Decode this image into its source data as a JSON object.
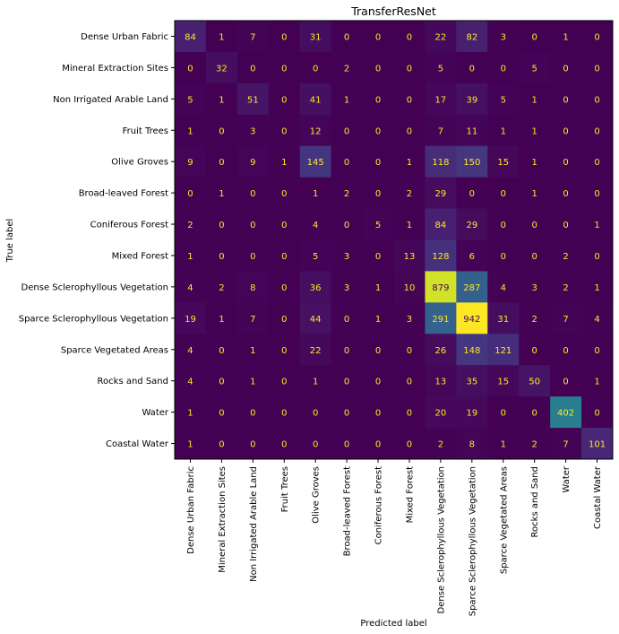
{
  "chart_data": {
    "type": "heatmap",
    "title": "TransferResNet",
    "xlabel": "Predicted label",
    "ylabel": "True label",
    "labels": [
      "Dense Urban Fabric",
      "Mineral Extraction Sites",
      "Non Irrigated Arable Land",
      "Fruit Trees",
      "Olive Groves",
      "Broad-leaved Forest",
      "Coniferous Forest",
      "Mixed Forest",
      "Dense Sclerophyllous Vegetation",
      "Sparce Sclerophyllous Vegetation",
      "Sparce Vegetated Areas",
      "Rocks and Sand",
      "Water",
      "Coastal Water"
    ],
    "matrix": [
      [
        84,
        1,
        7,
        0,
        31,
        0,
        0,
        0,
        22,
        82,
        3,
        0,
        1,
        0
      ],
      [
        0,
        32,
        0,
        0,
        0,
        2,
        0,
        0,
        5,
        0,
        0,
        5,
        0,
        0
      ],
      [
        5,
        1,
        51,
        0,
        41,
        1,
        0,
        0,
        17,
        39,
        5,
        1,
        0,
        0
      ],
      [
        1,
        0,
        3,
        0,
        12,
        0,
        0,
        0,
        7,
        11,
        1,
        1,
        0,
        0
      ],
      [
        9,
        0,
        9,
        1,
        145,
        0,
        0,
        1,
        118,
        150,
        15,
        1,
        0,
        0
      ],
      [
        0,
        1,
        0,
        0,
        1,
        2,
        0,
        2,
        29,
        0,
        0,
        1,
        0,
        0
      ],
      [
        2,
        0,
        0,
        0,
        4,
        0,
        5,
        1,
        84,
        29,
        0,
        0,
        0,
        1
      ],
      [
        1,
        0,
        0,
        0,
        5,
        3,
        0,
        13,
        128,
        6,
        0,
        0,
        2,
        0
      ],
      [
        4,
        2,
        8,
        0,
        36,
        3,
        1,
        10,
        879,
        287,
        4,
        3,
        2,
        1
      ],
      [
        19,
        1,
        7,
        0,
        44,
        0,
        1,
        3,
        291,
        942,
        31,
        2,
        7,
        4
      ],
      [
        4,
        0,
        1,
        0,
        22,
        0,
        0,
        0,
        26,
        148,
        121,
        0,
        0,
        0
      ],
      [
        4,
        0,
        1,
        0,
        1,
        0,
        0,
        0,
        13,
        35,
        15,
        50,
        0,
        1
      ],
      [
        1,
        0,
        0,
        0,
        0,
        0,
        0,
        0,
        20,
        19,
        0,
        0,
        402,
        0
      ],
      [
        1,
        0,
        0,
        0,
        0,
        0,
        0,
        0,
        2,
        8,
        1,
        2,
        7,
        101
      ]
    ],
    "colormap": "viridis",
    "colorbar": false,
    "grid": false
  }
}
